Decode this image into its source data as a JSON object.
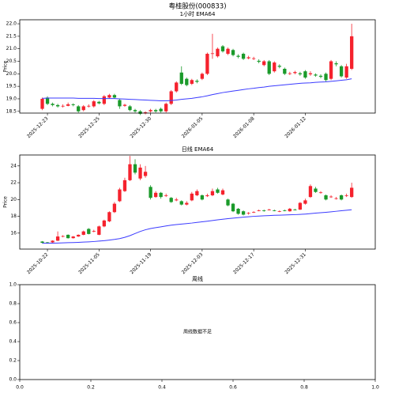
{
  "title": "粤桂股份(000833)",
  "chart_data": [
    {
      "type": "candlestick",
      "title": "1小时 EMA64",
      "ylabel": "Price",
      "categories": [
        null,
        "2025-12-23",
        null,
        null,
        null,
        null,
        null,
        null,
        null,
        null,
        null,
        "2025-12-25",
        null,
        null,
        null,
        null,
        null,
        null,
        null,
        null,
        null,
        "2025-12-30",
        null,
        null,
        null,
        null,
        null,
        null,
        null,
        null,
        null,
        "2026-01-05",
        null,
        null,
        null,
        null,
        null,
        null,
        null,
        null,
        null,
        "2026-01-08",
        null,
        null,
        null,
        null,
        null,
        null,
        null,
        null,
        null,
        "2026-01-12",
        null,
        null,
        null,
        null,
        null,
        null,
        null,
        null,
        null
      ],
      "open": [
        18.6,
        19.05,
        18.8,
        18.75,
        18.7,
        18.72,
        18.78,
        18.7,
        18.55,
        18.7,
        18.7,
        18.88,
        18.8,
        19.05,
        19.15,
        18.95,
        18.72,
        18.7,
        18.55,
        18.5,
        18.42,
        18.5,
        18.55,
        18.6,
        18.5,
        18.8,
        19.3,
        20.05,
        19.8,
        19.6,
        19.72,
        19.8,
        20.0,
        20.8,
        20.7,
        21.1,
        20.8,
        20.95,
        20.72,
        20.8,
        20.62,
        20.6,
        20.52,
        20.35,
        20.5,
        20.1,
        20.32,
        20.2,
        20.0,
        20.03,
        20.02,
        20.1,
        19.98,
        19.97,
        19.92,
        20.0,
        19.8,
        20.42,
        20.3,
        19.85,
        20.2
      ],
      "high": [
        19.05,
        19.1,
        18.85,
        18.8,
        18.78,
        18.85,
        18.82,
        18.75,
        18.75,
        18.78,
        18.95,
        18.92,
        19.15,
        19.2,
        19.2,
        19.0,
        18.8,
        18.75,
        18.6,
        18.55,
        18.5,
        18.6,
        18.6,
        18.65,
        18.85,
        19.35,
        19.7,
        20.3,
        19.85,
        19.8,
        19.78,
        20.05,
        20.85,
        21.6,
        21.05,
        21.15,
        21.05,
        21.0,
        20.78,
        20.85,
        20.72,
        20.68,
        20.58,
        20.55,
        20.55,
        20.5,
        20.38,
        20.25,
        20.08,
        20.12,
        20.08,
        20.15,
        20.1,
        20.02,
        19.98,
        20.05,
        20.55,
        20.5,
        20.35,
        20.4,
        22.0
      ],
      "low": [
        18.55,
        18.75,
        18.7,
        18.65,
        18.65,
        18.7,
        18.7,
        18.45,
        18.5,
        18.65,
        18.65,
        18.78,
        18.75,
        19.0,
        19.0,
        18.6,
        18.68,
        18.5,
        18.45,
        18.35,
        18.38,
        18.45,
        18.45,
        18.45,
        18.45,
        18.75,
        19.25,
        19.55,
        19.5,
        19.55,
        19.62,
        19.75,
        19.95,
        20.6,
        20.65,
        20.85,
        20.75,
        20.7,
        20.62,
        20.55,
        20.58,
        20.55,
        20.42,
        20.3,
        19.95,
        20.05,
        20.22,
        19.95,
        19.95,
        19.98,
        19.92,
        19.8,
        19.92,
        19.88,
        19.82,
        19.7,
        19.75,
        20.3,
        19.85,
        19.8,
        20.15
      ],
      "close": [
        19.0,
        18.8,
        18.75,
        18.7,
        18.72,
        18.78,
        18.75,
        18.5,
        18.7,
        18.72,
        18.9,
        18.82,
        19.1,
        19.15,
        19.05,
        18.7,
        18.76,
        18.55,
        18.5,
        18.4,
        18.46,
        18.55,
        18.5,
        18.5,
        18.8,
        19.3,
        19.65,
        19.6,
        19.55,
        19.75,
        19.68,
        20.0,
        20.8,
        20.82,
        21.0,
        20.9,
        21.0,
        20.75,
        20.68,
        20.6,
        20.66,
        20.62,
        20.48,
        20.5,
        20.0,
        20.45,
        20.28,
        20.0,
        20.02,
        20.07,
        19.98,
        19.85,
        20.02,
        19.93,
        19.88,
        19.75,
        20.5,
        20.38,
        19.9,
        20.3,
        21.5
      ],
      "up_color": "#f5222d",
      "down_color": "#1a9a2a",
      "lines": [
        {
          "color": "#3b3bff",
          "values": [
            19.02,
            19.03,
            19.03,
            19.03,
            19.03,
            19.03,
            19.03,
            19.02,
            19.02,
            19.02,
            19.02,
            19.01,
            19.01,
            19.01,
            19.01,
            19.0,
            18.99,
            18.98,
            18.97,
            18.96,
            18.95,
            18.94,
            18.93,
            18.92,
            18.92,
            18.93,
            18.95,
            18.98,
            19.0,
            19.02,
            19.05,
            19.08,
            19.12,
            19.17,
            19.21,
            19.25,
            19.28,
            19.31,
            19.34,
            19.37,
            19.4,
            19.42,
            19.45,
            19.47,
            19.5,
            19.52,
            19.54,
            19.56,
            19.58,
            19.6,
            19.62,
            19.63,
            19.64,
            19.66,
            19.67,
            19.68,
            19.7,
            19.72,
            19.74,
            19.76,
            19.8
          ]
        }
      ],
      "ylim": [
        18.43,
        22.16
      ],
      "yticks": [
        18.5,
        {
          "value": 19,
          "label": "19.0"
        },
        19.5,
        {
          "value": 20,
          "label": "20.0"
        },
        20.5,
        {
          "value": 21,
          "label": "21.0"
        },
        21.5,
        {
          "value": 22,
          "label": "22.0"
        }
      ]
    },
    {
      "type": "candlestick",
      "title": "日线 EMA64",
      "ylabel": "Price",
      "categories": [
        null,
        "2025-10-22",
        null,
        null,
        null,
        null,
        null,
        null,
        null,
        null,
        null,
        "2025-11-05",
        null,
        null,
        null,
        null,
        null,
        null,
        null,
        null,
        null,
        "2025-11-19",
        null,
        null,
        null,
        null,
        null,
        null,
        null,
        null,
        null,
        "2025-12-03",
        null,
        null,
        null,
        null,
        null,
        null,
        null,
        null,
        null,
        "2025-12-17",
        null,
        null,
        null,
        null,
        null,
        null,
        null,
        null,
        null,
        "2025-12-31",
        null,
        null,
        null,
        null,
        null,
        null,
        null,
        null,
        null
      ],
      "open": [
        15.0,
        14.9,
        14.9,
        15.1,
        15.6,
        15.8,
        15.4,
        15.6,
        15.8,
        16.5,
        16.2,
        15.8,
        16.8,
        17.4,
        18.5,
        19.8,
        21.0,
        22.3,
        24.2,
        22.5,
        22.8,
        21.5,
        20.3,
        20.8,
        20.45,
        20.2,
        19.9,
        19.8,
        19.4,
        19.9,
        20.5,
        20.5,
        20.4,
        20.5,
        21.2,
        20.6,
        20.0,
        19.5,
        18.9,
        18.6,
        18.35,
        18.45,
        18.65,
        18.7,
        18.75,
        18.7,
        18.6,
        18.7,
        18.6,
        18.8,
        18.8,
        19.5,
        20.3,
        21.3,
        20.8,
        20.5,
        20.3,
        20.1,
        20.5,
        20.45,
        20.3
      ],
      "high": [
        15.05,
        14.95,
        15.15,
        16.2,
        15.75,
        15.85,
        15.65,
        15.85,
        16.3,
        16.6,
        16.4,
        16.9,
        17.6,
        18.6,
        19.7,
        21.4,
        22.6,
        25.2,
        24.8,
        24.2,
        24.0,
        21.7,
        21.0,
        20.9,
        20.7,
        20.3,
        20.2,
        19.9,
        19.8,
        20.9,
        21.2,
        20.6,
        20.7,
        21.3,
        21.4,
        21.3,
        20.1,
        19.6,
        19.0,
        18.7,
        18.5,
        18.6,
        18.8,
        18.8,
        18.9,
        18.8,
        18.7,
        18.8,
        19.0,
        18.9,
        19.7,
        20.1,
        21.8,
        21.5,
        21.0,
        20.6,
        20.5,
        20.3,
        20.6,
        20.7,
        22.0
      ],
      "low": [
        14.8,
        14.8,
        14.85,
        15.05,
        15.5,
        15.35,
        15.35,
        15.55,
        15.75,
        15.85,
        16.1,
        15.75,
        16.7,
        17.3,
        18.4,
        19.7,
        20.9,
        22.2,
        23.0,
        22.3,
        22.6,
        20.0,
        20.2,
        20.1,
        20.3,
        19.6,
        19.8,
        19.3,
        19.3,
        19.8,
        20.4,
        19.9,
        20.3,
        20.4,
        20.7,
        20.5,
        19.2,
        18.5,
        18.2,
        18.1,
        18.2,
        18.4,
        18.6,
        18.55,
        18.7,
        18.6,
        18.5,
        18.6,
        18.55,
        18.7,
        18.75,
        19.4,
        20.2,
        20.8,
        20.7,
        19.9,
        20.2,
        20.0,
        19.9,
        20.3,
        20.2
      ],
      "close": [
        14.85,
        14.85,
        15.1,
        15.6,
        15.65,
        15.4,
        15.6,
        15.8,
        16.2,
        15.9,
        16.25,
        16.8,
        17.5,
        18.5,
        19.5,
        21.2,
        22.3,
        24.2,
        23.2,
        23.8,
        23.3,
        20.2,
        20.8,
        20.3,
        20.5,
        19.7,
        20.0,
        19.4,
        19.6,
        20.7,
        21.0,
        20.0,
        20.5,
        21.0,
        20.8,
        21.1,
        19.3,
        18.6,
        18.3,
        18.2,
        18.4,
        18.5,
        18.7,
        18.65,
        18.8,
        18.65,
        18.62,
        18.68,
        18.9,
        18.78,
        19.6,
        19.9,
        21.6,
        20.9,
        20.85,
        20.0,
        20.35,
        20.15,
        20.0,
        20.5,
        21.4
      ],
      "up_color": "#f5222d",
      "down_color": "#1a9a2a",
      "lines": [
        {
          "color": "#3b3bff",
          "values": [
            14.8,
            14.8,
            14.81,
            14.82,
            14.84,
            14.86,
            14.88,
            14.9,
            14.93,
            14.96,
            15.0,
            15.05,
            15.1,
            15.17,
            15.25,
            15.35,
            15.5,
            15.7,
            15.95,
            16.2,
            16.4,
            16.55,
            16.65,
            16.75,
            16.85,
            16.95,
            17.02,
            17.08,
            17.14,
            17.2,
            17.28,
            17.35,
            17.42,
            17.5,
            17.58,
            17.65,
            17.72,
            17.78,
            17.84,
            17.9,
            17.95,
            18.0,
            18.03,
            18.06,
            18.09,
            18.12,
            18.14,
            18.16,
            18.18,
            18.2,
            18.23,
            18.27,
            18.32,
            18.38,
            18.43,
            18.48,
            18.54,
            18.6,
            18.66,
            18.72,
            18.78
          ]
        }
      ],
      "ylim": [
        14.1,
        25.3
      ],
      "yticks": [
        16,
        18,
        20,
        22,
        24
      ]
    },
    {
      "type": "empty",
      "title": "周线",
      "annotation": "周线数据不足",
      "xlim": [
        0,
        1
      ],
      "ylim": [
        0,
        1
      ],
      "xticks": [
        {
          "value": 0,
          "label": "0.0"
        },
        {
          "value": 0.2,
          "label": "0.2"
        },
        {
          "value": 0.4,
          "label": "0.4"
        },
        {
          "value": 0.6,
          "label": "0.6"
        },
        {
          "value": 0.8,
          "label": "0.8"
        },
        {
          "value": 1,
          "label": "1.0"
        }
      ],
      "yticks": [
        {
          "value": 0,
          "label": "0.0"
        },
        {
          "value": 0.2,
          "label": "0.2"
        },
        {
          "value": 0.4,
          "label": "0.4"
        },
        {
          "value": 0.6,
          "label": "0.6"
        },
        {
          "value": 0.8,
          "label": "0.8"
        },
        {
          "value": 1,
          "label": "1.0"
        }
      ]
    }
  ]
}
